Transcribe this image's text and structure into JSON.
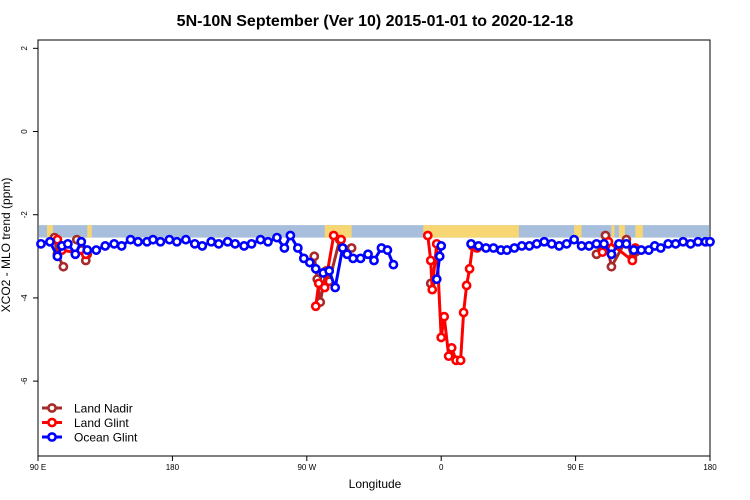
{
  "chart_data": {
    "type": "line",
    "title": "5N-10N September (Ver 10)   2015-01-01 to 2020-12-18",
    "xlabel": "Longitude",
    "ylabel": "XCO2 - MLO trend (ppm)",
    "xlim": [
      90,
      450
    ],
    "ylim": [
      -7.8,
      2.2
    ],
    "x_ticks": [
      {
        "value": 90,
        "label": "90 E"
      },
      {
        "value": 180,
        "label": "180"
      },
      {
        "value": 270,
        "label": "90 W"
      },
      {
        "value": 360,
        "label": "0"
      },
      {
        "value": 450,
        "label": "90 E"
      },
      {
        "value": 540,
        "label": "180"
      }
    ],
    "y_ticks": [
      {
        "value": 2,
        "label": "2"
      },
      {
        "value": 0,
        "label": "0"
      },
      {
        "value": -2,
        "label": "-2"
      },
      {
        "value": -4,
        "label": "-4"
      },
      {
        "value": -6,
        "label": "-6"
      }
    ],
    "x_range": [
      90,
      540
    ],
    "grid": false,
    "legend_position": "bottom-left",
    "background_band": {
      "y_range": [
        -2.55,
        -2.25
      ],
      "ocean_color": "#a7bedc",
      "land_color": "#f7d774",
      "land_segments": [
        [
          96,
          100
        ],
        [
          123,
          126
        ],
        [
          282,
          300
        ],
        [
          348,
          412
        ],
        [
          449,
          454
        ],
        [
          474,
          476
        ],
        [
          479,
          483
        ],
        [
          490,
          495
        ]
      ]
    },
    "series": [
      {
        "name": "Land Nadir",
        "color": "#a52a2a",
        "points": [
          [
            [
              101,
              -2.55
            ],
            [
              103,
              -2.95
            ],
            [
              107,
              -3.25
            ]
          ],
          [
            [
              116,
              -2.6
            ],
            [
              119,
              -2.85
            ],
            [
              122,
              -3.1
            ],
            [
              123,
              -2.95
            ]
          ],
          [
            [
              275,
              -3.0
            ],
            [
              277,
              -3.55
            ],
            [
              279,
              -4.1
            ],
            [
              283,
              -3.35
            ],
            [
              285,
              -3.6
            ],
            [
              292,
              -2.6
            ],
            [
              294,
              -2.8
            ],
            [
              296,
              -2.85
            ],
            [
              300,
              -2.8
            ]
          ],
          [
            [
              353,
              -3.65
            ]
          ],
          [
            [
              464,
              -2.95
            ],
            [
              470,
              -2.5
            ],
            [
              474,
              -3.25
            ],
            [
              484,
              -2.6
            ],
            [
              488,
              -3.05
            ],
            [
              490,
              -2.9
            ]
          ]
        ]
      },
      {
        "name": "Land Glint",
        "color": "#ff0000",
        "points": [
          [
            [
              103,
              -2.6
            ],
            [
              106,
              -2.85
            ],
            [
              122,
              -2.95
            ]
          ],
          [
            [
              276,
              -4.2
            ],
            [
              278,
              -3.65
            ],
            [
              282,
              -3.75
            ],
            [
              288,
              -2.5
            ],
            [
              293,
              -2.6
            ]
          ],
          [
            [
              351,
              -2.5
            ],
            [
              353,
              -3.1
            ],
            [
              354,
              -3.8
            ],
            [
              357,
              -2.7
            ],
            [
              360,
              -4.95
            ],
            [
              362,
              -4.45
            ],
            [
              365,
              -5.4
            ],
            [
              367,
              -5.2
            ],
            [
              370,
              -5.5
            ],
            [
              373,
              -5.5
            ],
            [
              375,
              -4.35
            ],
            [
              377,
              -3.7
            ],
            [
              379,
              -3.3
            ],
            [
              381,
              -2.75
            ],
            [
              384,
              -2.8
            ]
          ],
          [
            [
              468,
              -2.9
            ],
            [
              470,
              -2.75
            ],
            [
              472,
              -2.65
            ],
            [
              488,
              -3.1
            ],
            [
              490,
              -2.8
            ]
          ]
        ]
      },
      {
        "name": "Ocean Glint",
        "color": "#0000ff",
        "points": [
          [
            [
              92,
              -2.7
            ],
            [
              98,
              -2.65
            ],
            [
              103,
              -3.0
            ],
            [
              106,
              -2.75
            ],
            [
              110,
              -2.7
            ],
            [
              115,
              -2.95
            ],
            [
              119,
              -2.65
            ],
            [
              123,
              -2.85
            ],
            [
              129,
              -2.85
            ],
            [
              135,
              -2.75
            ],
            [
              141,
              -2.7
            ],
            [
              146,
              -2.75
            ],
            [
              152,
              -2.6
            ],
            [
              157,
              -2.65
            ],
            [
              163,
              -2.65
            ],
            [
              167,
              -2.6
            ],
            [
              172,
              -2.65
            ],
            [
              178,
              -2.6
            ],
            [
              183,
              -2.65
            ],
            [
              189,
              -2.6
            ],
            [
              195,
              -2.7
            ],
            [
              200,
              -2.75
            ],
            [
              206,
              -2.65
            ],
            [
              211,
              -2.7
            ],
            [
              217,
              -2.65
            ],
            [
              222,
              -2.7
            ],
            [
              228,
              -2.75
            ],
            [
              233,
              -2.7
            ],
            [
              239,
              -2.6
            ],
            [
              244,
              -2.65
            ],
            [
              250,
              -2.55
            ],
            [
              255,
              -2.8
            ],
            [
              259,
              -2.5
            ],
            [
              264,
              -2.8
            ],
            [
              268,
              -3.05
            ],
            [
              272,
              -3.15
            ],
            [
              276,
              -3.3
            ],
            [
              281,
              -3.4
            ],
            [
              285,
              -3.35
            ],
            [
              289,
              -3.75
            ],
            [
              294,
              -2.8
            ],
            [
              297,
              -2.95
            ],
            [
              301,
              -3.05
            ],
            [
              306,
              -3.05
            ],
            [
              311,
              -2.95
            ],
            [
              315,
              -3.1
            ],
            [
              320,
              -2.8
            ],
            [
              324,
              -2.85
            ],
            [
              328,
              -3.2
            ]
          ],
          [
            [
              357,
              -3.55
            ],
            [
              359,
              -3.0
            ],
            [
              360,
              -2.75
            ]
          ],
          [
            [
              380,
              -2.7
            ],
            [
              385,
              -2.75
            ],
            [
              390,
              -2.8
            ],
            [
              395,
              -2.8
            ],
            [
              400,
              -2.85
            ],
            [
              404,
              -2.85
            ],
            [
              409,
              -2.8
            ],
            [
              414,
              -2.75
            ],
            [
              419,
              -2.75
            ],
            [
              424,
              -2.7
            ],
            [
              429,
              -2.65
            ],
            [
              434,
              -2.7
            ],
            [
              439,
              -2.75
            ],
            [
              444,
              -2.7
            ],
            [
              449,
              -2.6
            ],
            [
              454,
              -2.75
            ],
            [
              459,
              -2.75
            ],
            [
              464,
              -2.7
            ],
            [
              469,
              -2.7
            ],
            [
              474,
              -2.95
            ],
            [
              479,
              -2.7
            ],
            [
              484,
              -2.7
            ],
            [
              489,
              -2.85
            ],
            [
              494,
              -2.85
            ],
            [
              499,
              -2.85
            ],
            [
              503,
              -2.75
            ],
            [
              507,
              -2.8
            ],
            [
              512,
              -2.7
            ],
            [
              517,
              -2.7
            ],
            [
              522,
              -2.65
            ],
            [
              527,
              -2.7
            ],
            [
              532,
              -2.65
            ],
            [
              537,
              -2.65
            ],
            [
              540,
              -2.65
            ]
          ]
        ]
      }
    ]
  }
}
